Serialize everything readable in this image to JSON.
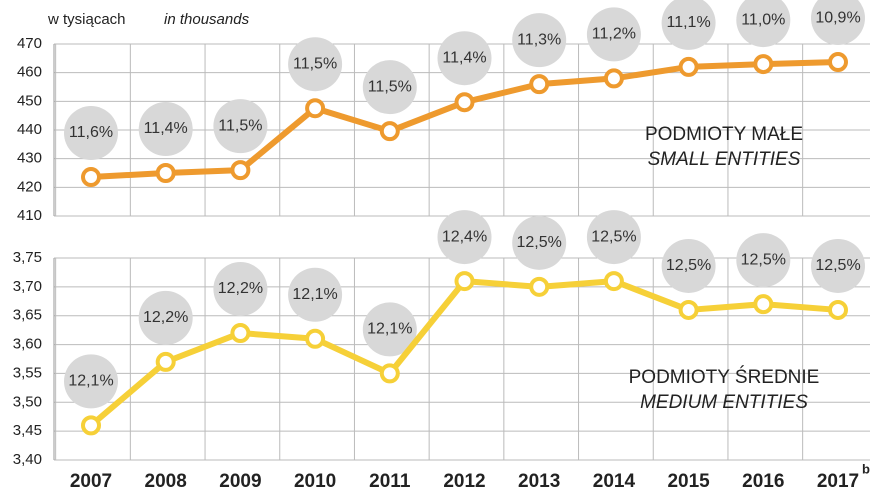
{
  "chart_data": [
    {
      "type": "line",
      "ylabel": "w tysiącach",
      "ylabel_en": "in thousands",
      "ylim": [
        410,
        470
      ],
      "yticks": [
        410,
        420,
        430,
        440,
        450,
        460,
        470
      ],
      "series": [
        {
          "name": "PODMIOTY MAŁE",
          "name_en": "SMALL ENTITIES",
          "color": "#ee9a2e",
          "values": [
            423.6,
            425,
            426,
            447.6,
            439.6,
            449.7,
            456,
            458,
            462,
            463,
            463.7
          ],
          "point_labels": [
            "11,6%",
            "11,4%",
            "11,5%",
            "11,5%",
            "11,5%",
            "11,4%",
            "11,3%",
            "11,2%",
            "11,1%",
            "11,0%",
            "10,9%"
          ]
        }
      ]
    },
    {
      "type": "line",
      "categories": [
        "2007",
        "2008",
        "2009",
        "2010",
        "2011",
        "2012",
        "2013",
        "2014",
        "2015",
        "2016",
        "2017"
      ],
      "category_notes": [
        null,
        null,
        null,
        null,
        null,
        null,
        null,
        null,
        null,
        null,
        "b"
      ],
      "ylim": [
        3.4,
        3.75
      ],
      "yticks": [
        {
          "value": 3.4,
          "label": "3,40"
        },
        {
          "value": 3.45,
          "label": "3,45"
        },
        {
          "value": 3.5,
          "label": "3,50"
        },
        {
          "value": 3.55,
          "label": "3,55"
        },
        {
          "value": 3.6,
          "label": "3,60"
        },
        {
          "value": 3.65,
          "label": "3,65"
        },
        {
          "value": 3.7,
          "label": "3,70"
        },
        {
          "value": 3.75,
          "label": "3,75"
        }
      ],
      "series": [
        {
          "name": "PODMIOTY ŚREDNIE",
          "name_en": "MEDIUM ENTITIES",
          "color": "#f6d038",
          "values": [
            3.46,
            3.57,
            3.62,
            3.61,
            3.55,
            3.71,
            3.7,
            3.71,
            3.66,
            3.67,
            3.66
          ],
          "point_labels": [
            "12,1%",
            "12,2%",
            "12,2%",
            "12,1%",
            "12,1%",
            "12,4%",
            "12,5%",
            "12,5%",
            "12,5%",
            "12,5%",
            "12,5%"
          ]
        }
      ]
    }
  ]
}
